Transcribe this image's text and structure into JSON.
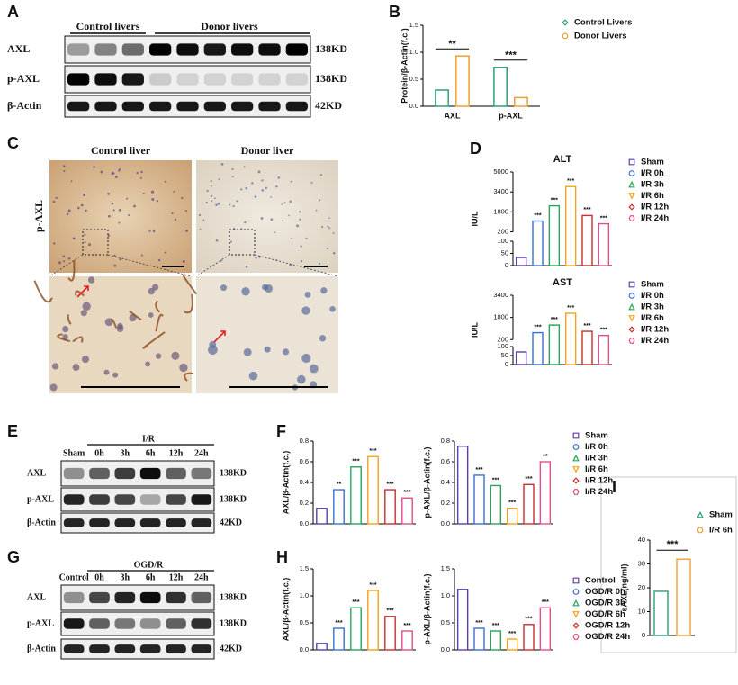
{
  "panels": {
    "A": {
      "label": "A",
      "groups": [
        "Control livers",
        "Donor livers"
      ],
      "rows": [
        "AXL",
        "p-AXL",
        "β-Actin"
      ],
      "sizes": [
        "138KD",
        "138KD",
        "42KD"
      ]
    },
    "C": {
      "label": "C",
      "titles": [
        "Control liver",
        "Donor liver"
      ],
      "stain": "p-AXL"
    },
    "E": {
      "label": "E",
      "header": "I/R",
      "lanes": [
        "Sham",
        "0h",
        "3h",
        "6h",
        "12h",
        "24h"
      ],
      "rows": [
        "AXL",
        "p-AXL",
        "β-Actin"
      ],
      "sizes": [
        "138KD",
        "138KD",
        "42KD"
      ]
    },
    "G": {
      "label": "G",
      "header": "OGD/R",
      "lanes": [
        "Control",
        "0h",
        "3h",
        "6h",
        "12h",
        "24h"
      ],
      "rows": [
        "AXL",
        "p-AXL",
        "β-Actin"
      ],
      "sizes": [
        "138KD",
        "138KD",
        "42KD"
      ]
    }
  },
  "chart_data": [
    {
      "type": "bar",
      "panel": "B",
      "ylabel": "Protein/β-Actin(f.c.)",
      "categories": [
        "AXL",
        "p-AXL"
      ],
      "series": [
        {
          "name": "Control Livers",
          "color": "#2e9e78",
          "values": [
            0.3,
            0.72
          ]
        },
        {
          "name": "Donor Livers",
          "color": "#f0a030",
          "values": [
            0.93,
            0.16
          ]
        }
      ],
      "significance": [
        "**",
        "***"
      ],
      "ylim": [
        0,
        1.5
      ],
      "yticks": [
        {
          "value": 0,
          "label": "0.0"
        },
        {
          "value": 0.5,
          "label": "0.5"
        },
        {
          "value": 1,
          "label": "1.0"
        },
        {
          "value": 1.5,
          "label": "1.5"
        }
      ]
    },
    {
      "type": "bar",
      "panel": "D",
      "title": "ALT",
      "ylabel": "IU/L",
      "categories": [
        "Sham",
        "I/R 0h",
        "I/R 3h",
        "I/R 6h",
        "I/R 12h",
        "I/R 24h"
      ],
      "colors": [
        "#5b3fa8",
        "#3b6fd4",
        "#26a65b",
        "#f2a31b",
        "#c8302c",
        "#e04f8f"
      ],
      "values": [
        33,
        1070,
        2290,
        3830,
        1510,
        850
      ],
      "significance": [
        null,
        "***",
        "***",
        "***",
        "***",
        "***"
      ],
      "ylim": [
        0,
        5000
      ],
      "ybreak": [
        100,
        200
      ],
      "yticks": [
        0,
        50,
        100,
        200,
        1800,
        3400,
        5000
      ]
    },
    {
      "type": "bar",
      "title": "AST",
      "ylabel": "IU/L",
      "categories": [
        "Sham",
        "I/R 0h",
        "I/R 3h",
        "I/R 6h",
        "I/R 12h",
        "I/R 24h"
      ],
      "colors": [
        "#5b3fa8",
        "#3b6fd4",
        "#26a65b",
        "#f2a31b",
        "#c8302c",
        "#e04f8f"
      ],
      "values": [
        70,
        700,
        1250,
        2100,
        800,
        500
      ],
      "significance": [
        null,
        "***",
        "***",
        "***",
        "***",
        "***"
      ],
      "ylim": [
        0,
        3400
      ],
      "ybreak": [
        100,
        200
      ],
      "yticks": [
        0,
        50,
        100,
        200,
        1800,
        3400
      ]
    },
    {
      "type": "bar",
      "panel": "F",
      "ylabel": "AXL/β-Actin(f.c.)",
      "colors": [
        "#5b3fa8",
        "#3b6fd4",
        "#26a65b",
        "#f2a31b",
        "#c8302c",
        "#e04f8f"
      ],
      "values": [
        0.15,
        0.33,
        0.55,
        0.65,
        0.33,
        0.25
      ],
      "significance": [
        null,
        "**",
        "***",
        "***",
        "***",
        "***"
      ],
      "ylim": [
        0,
        0.8
      ],
      "yticks": [
        {
          "value": 0,
          "label": "0.0"
        },
        {
          "value": 0.2,
          "label": "0.2"
        },
        {
          "value": 0.4,
          "label": "0.4"
        },
        {
          "value": 0.6,
          "label": "0.6"
        },
        {
          "value": 0.8,
          "label": "0.8"
        }
      ]
    },
    {
      "type": "bar",
      "ylabel": "p-AXL/β-Actin(f.c.)",
      "categories": [
        "Sham",
        "I/R 0h",
        "I/R 3h",
        "I/R 6h",
        "I/R 12h",
        "I/R 24h"
      ],
      "colors": [
        "#5b3fa8",
        "#3b6fd4",
        "#26a65b",
        "#f2a31b",
        "#c8302c",
        "#e04f8f"
      ],
      "values": [
        0.75,
        0.47,
        0.37,
        0.15,
        0.38,
        0.6
      ],
      "significance": [
        null,
        "***",
        "***",
        "***",
        "***",
        "**"
      ],
      "ylim": [
        0,
        0.8
      ],
      "yticks": [
        {
          "value": 0,
          "label": "0.0"
        },
        {
          "value": 0.2,
          "label": "0.2"
        },
        {
          "value": 0.4,
          "label": "0.4"
        },
        {
          "value": 0.6,
          "label": "0.6"
        },
        {
          "value": 0.8,
          "label": "0.8"
        }
      ]
    },
    {
      "type": "bar",
      "panel": "H",
      "ylabel": "AXL/β-Actin(f.c.)",
      "colors": [
        "#5b3fa8",
        "#3b6fd4",
        "#26a65b",
        "#f2a31b",
        "#c8302c",
        "#e04f8f"
      ],
      "values": [
        0.12,
        0.4,
        0.78,
        1.1,
        0.62,
        0.35
      ],
      "significance": [
        null,
        "***",
        "***",
        "***",
        "***",
        "***"
      ],
      "ylim": [
        0,
        1.5
      ],
      "yticks": [
        {
          "value": 0,
          "label": "0.0"
        },
        {
          "value": 0.5,
          "label": "0.5"
        },
        {
          "value": 1,
          "label": "1.0"
        },
        {
          "value": 1.5,
          "label": "1.5"
        }
      ]
    },
    {
      "type": "bar",
      "ylabel": "p-AXL/β-Actin(f.c.)",
      "categories": [
        "Control",
        "OGD/R 0h",
        "OGD/R 3h",
        "OGD/R 6h",
        "OGD/R 12h",
        "OGD/R 24h"
      ],
      "colors": [
        "#5b3fa8",
        "#3b6fd4",
        "#26a65b",
        "#f2a31b",
        "#c8302c",
        "#e04f8f"
      ],
      "values": [
        1.12,
        0.4,
        0.35,
        0.2,
        0.47,
        0.78
      ],
      "significance": [
        null,
        "***",
        "***",
        "***",
        "***",
        "***"
      ],
      "ylim": [
        0,
        1.5
      ],
      "yticks": [
        {
          "value": 0,
          "label": "0.0"
        },
        {
          "value": 0.5,
          "label": "0.5"
        },
        {
          "value": 1,
          "label": "1.0"
        },
        {
          "value": 1.5,
          "label": "1.5"
        }
      ]
    },
    {
      "type": "bar",
      "panel": "I",
      "ylabel": "sAXL(ng/ml)",
      "categories": [
        "Sham",
        "I/R 6h"
      ],
      "colors": [
        "#2e9e78",
        "#f0a030"
      ],
      "values": [
        18.5,
        32
      ],
      "significance": "***",
      "ylim": [
        0,
        40
      ],
      "yticks": [
        0,
        10,
        20,
        30,
        40
      ]
    }
  ]
}
